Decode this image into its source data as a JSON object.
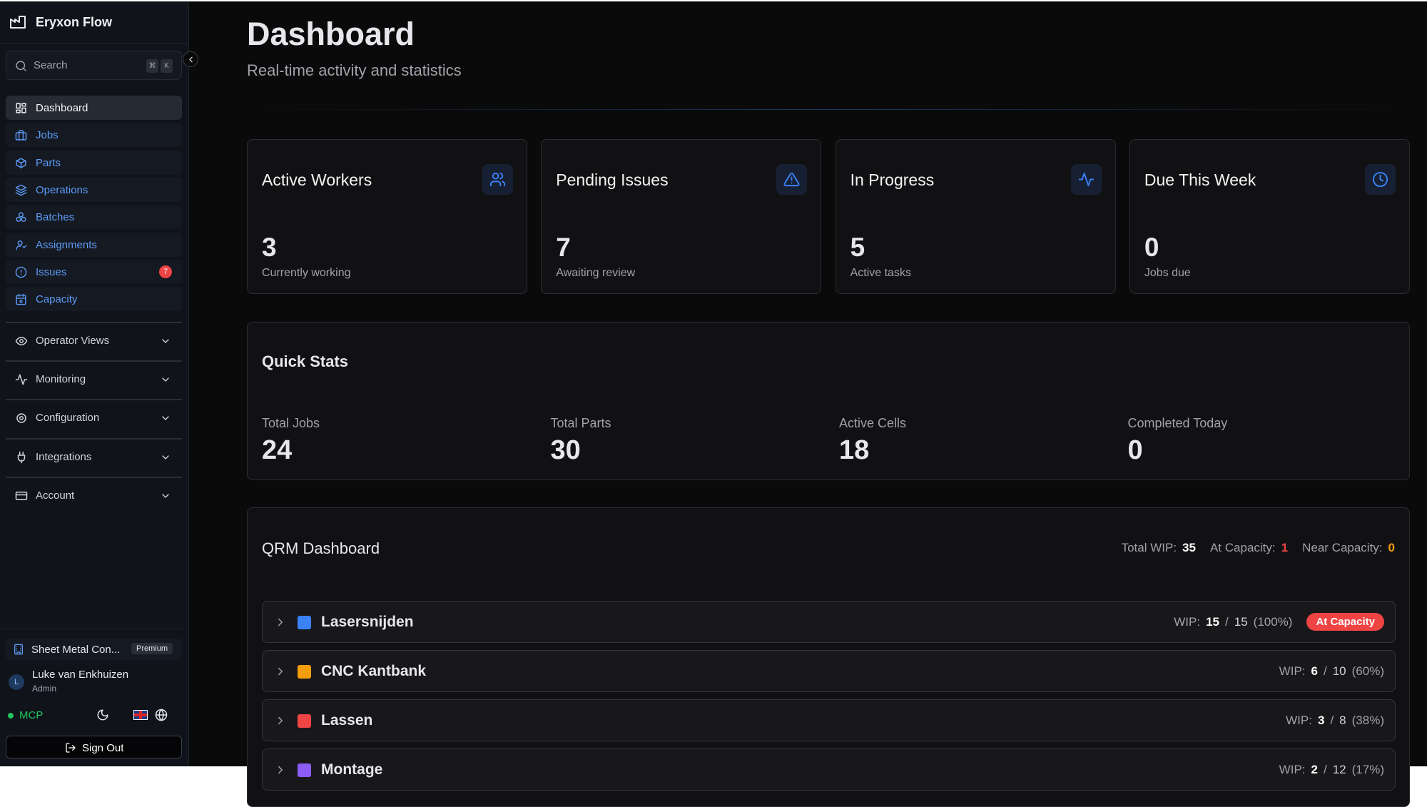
{
  "sidebar": {
    "brand": "Eryxon Flow",
    "search": {
      "placeholder": "Search",
      "shortcut": [
        "⌘",
        "K"
      ]
    },
    "nav": [
      {
        "label": "Dashboard"
      },
      {
        "label": "Jobs"
      },
      {
        "label": "Parts"
      },
      {
        "label": "Operations"
      },
      {
        "label": "Batches"
      },
      {
        "label": "Assignments"
      },
      {
        "label": "Issues",
        "badge": 7
      },
      {
        "label": "Capacity"
      }
    ],
    "groups": [
      "Operator Views",
      "Monitoring",
      "Configuration",
      "Integrations",
      "Account"
    ],
    "org": {
      "name": "Sheet Metal Con...",
      "plan": "Premium"
    },
    "user": {
      "initial": "L",
      "name": "Luke van Enkhuizen",
      "role": "Admin"
    },
    "status": "MCP",
    "sign_out": "Sign Out"
  },
  "header": {
    "title": "Dashboard",
    "subtitle": "Real-time activity and statistics"
  },
  "cards": [
    {
      "title": "Active Workers",
      "value": 3,
      "caption": "Currently working"
    },
    {
      "title": "Pending Issues",
      "value": 7,
      "caption": "Awaiting review"
    },
    {
      "title": "In Progress",
      "value": 5,
      "caption": "Active tasks"
    },
    {
      "title": "Due This Week",
      "value": 0,
      "caption": "Jobs due"
    }
  ],
  "quick_stats": {
    "title": "Quick Stats",
    "items": [
      {
        "label": "Total Jobs",
        "value": 24
      },
      {
        "label": "Total Parts",
        "value": 30
      },
      {
        "label": "Active Cells",
        "value": 18
      },
      {
        "label": "Completed Today",
        "value": 0
      }
    ]
  },
  "qrm": {
    "title": "QRM Dashboard",
    "summary": [
      {
        "label": "Total WIP:",
        "value": 35,
        "color": "#ffffff"
      },
      {
        "label": "At Capacity:",
        "value": 1,
        "color": "#ef4444"
      },
      {
        "label": "Near Capacity:",
        "value": 0,
        "color": "#f59e0b"
      }
    ],
    "wip_label": "WIP:",
    "separator": "/",
    "cells": [
      {
        "name": "Lasersnijden",
        "color": "#3b82f6",
        "current": 15,
        "limit": 15,
        "percent": "(100%)",
        "status": "At Capacity"
      },
      {
        "name": "CNC Kantbank",
        "color": "#f59e0b",
        "current": 6,
        "limit": 10,
        "percent": "(60%)"
      },
      {
        "name": "Lassen",
        "color": "#ef4444",
        "current": 3,
        "limit": 8,
        "percent": "(38%)"
      },
      {
        "name": "Montage",
        "color": "#8b5cf6",
        "current": 2,
        "limit": 12,
        "percent": "(17%)"
      }
    ]
  }
}
